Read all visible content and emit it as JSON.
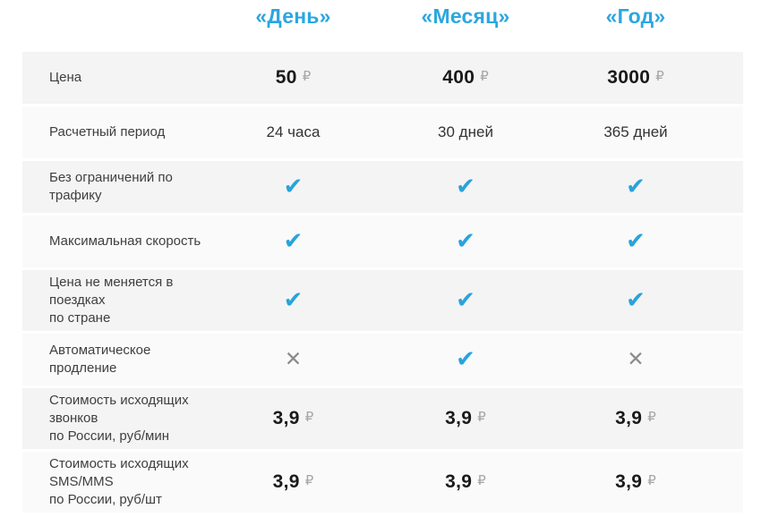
{
  "colors": {
    "accent_blue": "#2BA7E0",
    "check_blue": "#29A3DC",
    "cross_gray": "#8C8C8C",
    "row_odd_bg": "#F4F4F4",
    "row_even_bg": "#FAFAFA",
    "label_text": "#3F3F3F",
    "value_text": "#333333",
    "price_text": "#1A1A1A",
    "ruble_gray": "#A6A6A6"
  },
  "icons": {
    "check": "✔",
    "cross": "✕"
  },
  "currency": "₽",
  "header": {
    "plans": [
      "«День»",
      "«Месяц»",
      "«Год»"
    ]
  },
  "rows": [
    {
      "label_lines": [
        "Цена"
      ],
      "type": "price",
      "values": [
        "50",
        "400",
        "3000"
      ]
    },
    {
      "label_lines": [
        "Расчетный период"
      ],
      "type": "text",
      "values": [
        "24 часа",
        "30 дней",
        "365 дней"
      ]
    },
    {
      "label_lines": [
        "Без ограничений по трафику"
      ],
      "type": "mark",
      "values": [
        "check",
        "check",
        "check"
      ]
    },
    {
      "label_lines": [
        "Максимальная скорость"
      ],
      "type": "mark",
      "values": [
        "check",
        "check",
        "check"
      ]
    },
    {
      "label_lines": [
        "Цена не меняется в поездках",
        "по стране"
      ],
      "type": "mark",
      "values": [
        "check",
        "check",
        "check"
      ]
    },
    {
      "label_lines": [
        "Автоматическое продление"
      ],
      "type": "mark",
      "values": [
        "cross",
        "check",
        "cross"
      ]
    },
    {
      "label_lines": [
        "Стоимость исходящих звонков",
        "по России, руб/мин"
      ],
      "type": "price",
      "values": [
        "3,9",
        "3,9",
        "3,9"
      ]
    },
    {
      "label_lines": [
        "Стоимость исходящих SMS/MMS",
        "по России, руб/шт"
      ],
      "type": "price",
      "values": [
        "3,9",
        "3,9",
        "3,9"
      ]
    }
  ]
}
